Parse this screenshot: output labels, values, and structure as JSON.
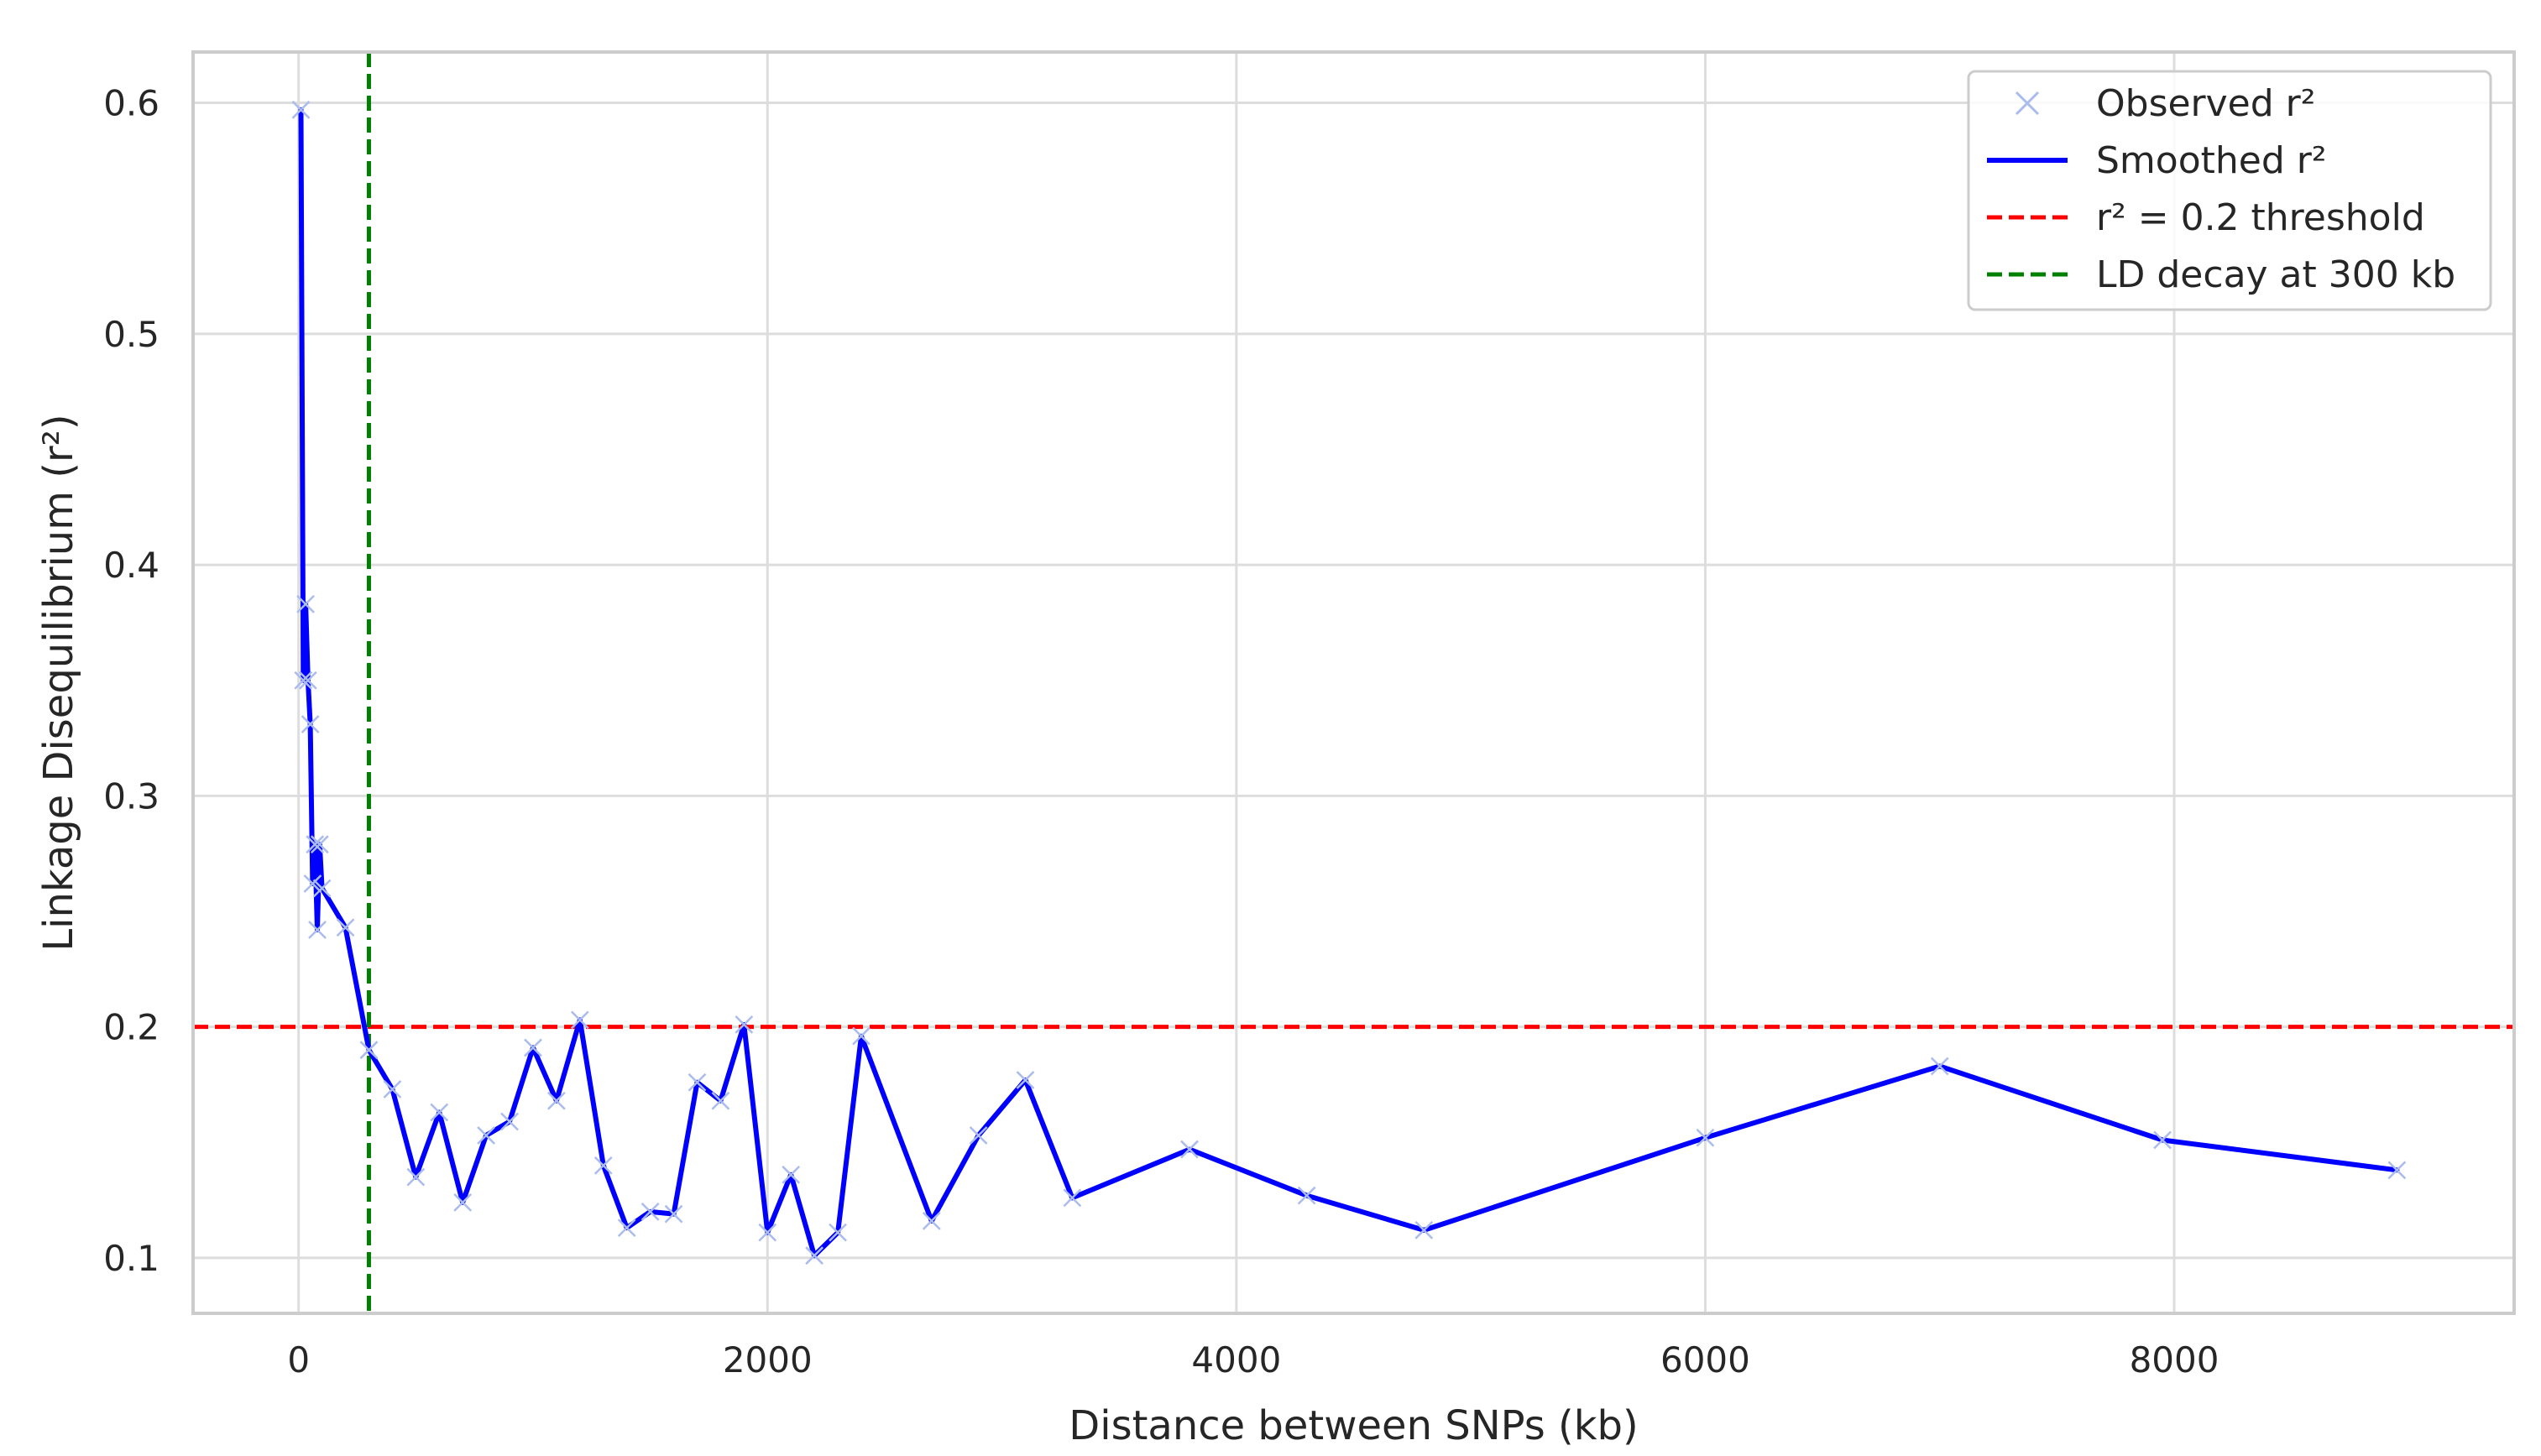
{
  "chart_data": {
    "type": "line",
    "title": "",
    "xlabel": "Distance between SNPs (kb)",
    "ylabel": "Linkage Disequilibrium (r²)",
    "xlim": [
      -450,
      9450
    ],
    "ylim": [
      0.076,
      0.622
    ],
    "x_ticks": [
      0,
      2000,
      4000,
      6000,
      8000
    ],
    "y_ticks": [
      0.1,
      0.2,
      0.3,
      0.4,
      0.5,
      0.6
    ],
    "grid": true,
    "legend_position": "top-right",
    "colors": {
      "observed": "#aabbee",
      "smoothed": "#0000ff",
      "threshold": "#ff0000",
      "decay": "#008000",
      "grid": "#dddddd",
      "frame": "#cccccc"
    },
    "series": [
      {
        "name": "Observed r²",
        "style": "x-markers",
        "x": [
          10,
          20,
          30,
          40,
          50,
          60,
          70,
          80,
          90,
          100,
          200,
          300,
          400,
          500,
          600,
          700,
          800,
          900,
          1000,
          1100,
          1200,
          1300,
          1400,
          1500,
          1600,
          1700,
          1800,
          1900,
          2000,
          2100,
          2200,
          2300,
          2400,
          2700,
          2900,
          3100,
          3300,
          3800,
          4300,
          4800,
          6000,
          7000,
          7950,
          8950
        ],
        "y": [
          0.597,
          0.35,
          0.383,
          0.35,
          0.331,
          0.262,
          0.279,
          0.242,
          0.279,
          0.26,
          0.243,
          0.19,
          0.173,
          0.135,
          0.163,
          0.124,
          0.153,
          0.159,
          0.191,
          0.168,
          0.203,
          0.14,
          0.113,
          0.12,
          0.119,
          0.176,
          0.168,
          0.201,
          0.111,
          0.136,
          0.101,
          0.111,
          0.196,
          0.116,
          0.153,
          0.177,
          0.126,
          0.147,
          0.127,
          0.112,
          0.152,
          0.183,
          0.151,
          0.138
        ]
      },
      {
        "name": "Smoothed r²",
        "style": "solid-line",
        "x": [
          10,
          20,
          30,
          40,
          50,
          60,
          70,
          80,
          90,
          100,
          200,
          300,
          400,
          500,
          600,
          700,
          800,
          900,
          1000,
          1100,
          1200,
          1300,
          1400,
          1500,
          1600,
          1700,
          1800,
          1900,
          2000,
          2100,
          2200,
          2300,
          2400,
          2700,
          2900,
          3100,
          3300,
          3800,
          4300,
          4800,
          6000,
          7000,
          7950,
          8950
        ],
        "y": [
          0.597,
          0.35,
          0.383,
          0.35,
          0.331,
          0.262,
          0.279,
          0.242,
          0.279,
          0.26,
          0.243,
          0.19,
          0.173,
          0.135,
          0.163,
          0.124,
          0.153,
          0.159,
          0.191,
          0.168,
          0.203,
          0.14,
          0.113,
          0.12,
          0.119,
          0.176,
          0.168,
          0.201,
          0.111,
          0.136,
          0.101,
          0.111,
          0.196,
          0.116,
          0.153,
          0.177,
          0.126,
          0.147,
          0.127,
          0.112,
          0.152,
          0.183,
          0.151,
          0.138
        ]
      }
    ],
    "reference_lines": [
      {
        "name": "r² = 0.2 threshold",
        "orientation": "horizontal",
        "value": 0.2
      },
      {
        "name": "LD decay at 300 kb",
        "orientation": "vertical",
        "value": 300
      }
    ]
  }
}
